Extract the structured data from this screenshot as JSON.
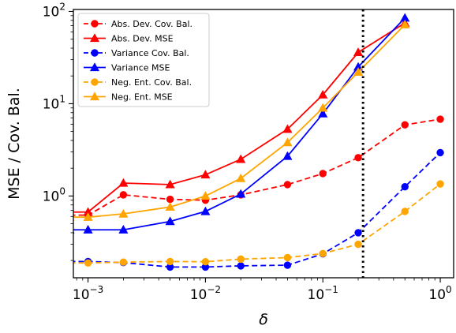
{
  "chart_data": {
    "type": "line",
    "xlabel": "δ",
    "ylabel": "MSE / Cov. Bal.",
    "xscale": "log",
    "yscale": "log",
    "xlim": [
      0.00075,
      1.3
    ],
    "ylim": [
      0.13,
      105
    ],
    "grid": false,
    "legend_position": "top-left",
    "vline": {
      "x": 0.22,
      "style": "dotted",
      "color": "#000000"
    },
    "x_ticks": [
      {
        "value": 0.001,
        "base": "10",
        "exp": "−3"
      },
      {
        "value": 0.01,
        "base": "10",
        "exp": "−2"
      },
      {
        "value": 0.1,
        "base": "10",
        "exp": "−1"
      },
      {
        "value": 1,
        "base": "10",
        "exp": "0"
      }
    ],
    "y_ticks": [
      {
        "value": 1,
        "base": "10",
        "exp": "0"
      },
      {
        "value": 10,
        "base": "10",
        "exp": "1"
      },
      {
        "value": 100,
        "base": "10",
        "exp": "2"
      }
    ],
    "series": [
      {
        "name": "Abs. Dev. Cov. Bal.",
        "color": "#ff0000",
        "marker": "circle",
        "dash": true,
        "x": [
          0.0007,
          0.001,
          0.002,
          0.005,
          0.01,
          0.02,
          0.05,
          0.1,
          0.2,
          0.5,
          1.0
        ],
        "y": [
          0.62,
          0.62,
          1.03,
          0.92,
          0.9,
          1.03,
          1.33,
          1.75,
          2.6,
          5.9,
          6.8
        ]
      },
      {
        "name": "Abs. Dev. MSE",
        "color": "#ff0000",
        "marker": "triangle",
        "dash": false,
        "x": [
          0.0007,
          0.001,
          0.002,
          0.005,
          0.01,
          0.02,
          0.05,
          0.1,
          0.2,
          0.5
        ],
        "y": [
          0.67,
          0.67,
          1.38,
          1.33,
          1.7,
          2.5,
          5.3,
          12.5,
          36,
          75
        ]
      },
      {
        "name": "Variance Cov. Bal.",
        "color": "#0000ff",
        "marker": "circle",
        "dash": true,
        "x": [
          0.0007,
          0.001,
          0.002,
          0.005,
          0.01,
          0.02,
          0.05,
          0.1,
          0.2,
          0.5,
          1.0
        ],
        "y": [
          0.195,
          0.195,
          0.19,
          0.17,
          0.17,
          0.175,
          0.178,
          0.236,
          0.4,
          1.26,
          2.95
        ]
      },
      {
        "name": "Variance MSE",
        "color": "#0000ff",
        "marker": "triangle",
        "dash": false,
        "x": [
          0.0007,
          0.001,
          0.002,
          0.005,
          0.01,
          0.02,
          0.05,
          0.1,
          0.2,
          0.5
        ],
        "y": [
          0.43,
          0.43,
          0.43,
          0.53,
          0.68,
          1.05,
          2.7,
          7.8,
          25,
          85
        ]
      },
      {
        "name": "Neg. Ent. Cov. Bal.",
        "color": "#ffa500",
        "marker": "circle",
        "dash": true,
        "x": [
          0.0007,
          0.001,
          0.002,
          0.005,
          0.01,
          0.02,
          0.05,
          0.1,
          0.2,
          0.5,
          1.0
        ],
        "y": [
          0.188,
          0.188,
          0.192,
          0.195,
          0.194,
          0.207,
          0.215,
          0.238,
          0.3,
          0.68,
          1.35
        ]
      },
      {
        "name": "Neg. Ent. MSE",
        "color": "#ffa500",
        "marker": "triangle",
        "dash": false,
        "x": [
          0.0007,
          0.001,
          0.002,
          0.005,
          0.01,
          0.02,
          0.05,
          0.1,
          0.2,
          0.5
        ],
        "y": [
          0.59,
          0.59,
          0.64,
          0.76,
          1.0,
          1.55,
          3.8,
          9.0,
          22,
          72
        ]
      }
    ]
  }
}
